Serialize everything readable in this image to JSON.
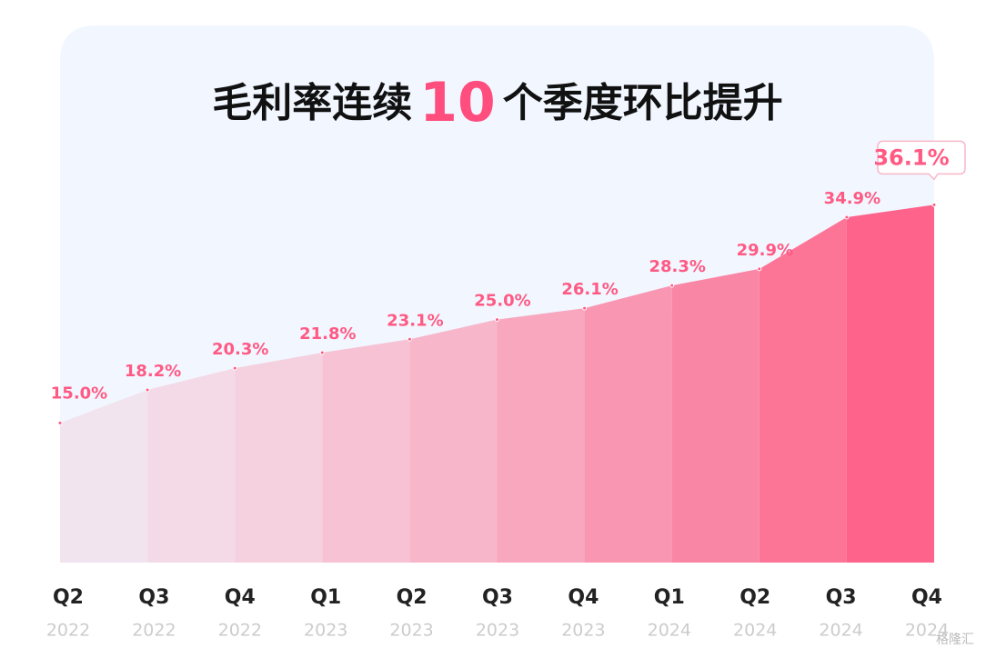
{
  "chart_data": {
    "type": "area",
    "title": [
      "毛利率连续",
      "10",
      "个季度环比提升"
    ],
    "categories": [
      "Q2",
      "Q3",
      "Q4",
      "Q1",
      "Q2",
      "Q3",
      "Q4",
      "Q1",
      "Q2",
      "Q3",
      "Q4"
    ],
    "category_years": [
      "2022",
      "2022",
      "2022",
      "2023",
      "2023",
      "2023",
      "2023",
      "2024",
      "2024",
      "2024",
      "2024"
    ],
    "values": [
      15.0,
      18.2,
      20.3,
      21.8,
      23.1,
      25.0,
      26.1,
      28.3,
      29.9,
      34.9,
      36.1
    ],
    "value_labels": [
      "15.0%",
      "18.2%",
      "20.3%",
      "21.8%",
      "23.1%",
      "25.0%",
      "26.1%",
      "28.3%",
      "29.9%",
      "34.9%",
      "36.1%"
    ],
    "segment_colors": [
      "#f1e4ee",
      "#f3dae6",
      "#f5d0de",
      "#f6c2d4",
      "#f7b6ca",
      "#f8a7be",
      "#f996b2",
      "#fa86a5",
      "#fc7597",
      "#fe638b"
    ],
    "label_color": "#ff5a83",
    "ylim": [
      1.5,
      40
    ],
    "watermark": "格隆汇"
  }
}
